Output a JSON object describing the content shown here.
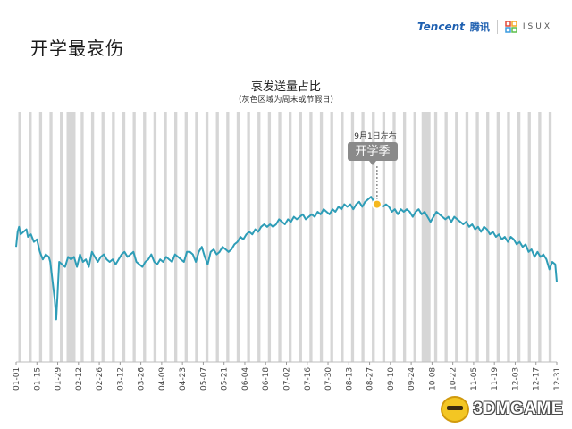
{
  "slide": {
    "title": "开学最哀伤",
    "brand": {
      "tencent": "Tencent",
      "tencent_cn": "腾讯",
      "isux": "ISUX"
    },
    "watermark": "3DMGAME"
  },
  "colors": {
    "line": "#2e9db7",
    "weekend_band": "#d6d6d6",
    "marker": "#f5b820",
    "callout_tag": "#8a8a8a"
  },
  "chart_data": {
    "type": "line",
    "title": "哀发送量占比",
    "subtitle": "（灰色区域为周末或节假日）",
    "xlabel": "",
    "ylabel": "",
    "x_start": "01-01",
    "x_end": "12-31",
    "x_tick_labels": [
      "01-01",
      "01-15",
      "01-29",
      "02-12",
      "02-26",
      "03-12",
      "03-26",
      "04-09",
      "04-23",
      "05-07",
      "05-21",
      "06-04",
      "06-18",
      "07-02",
      "07-16",
      "07-30",
      "08-13",
      "08-27",
      "09-10",
      "09-24",
      "10-08",
      "10-22",
      "11-05",
      "11-19",
      "12-03",
      "12-17",
      "12-31"
    ],
    "x_tick_days": [
      0,
      14,
      28,
      42,
      56,
      70,
      84,
      98,
      112,
      126,
      140,
      154,
      168,
      182,
      196,
      210,
      224,
      238,
      252,
      266,
      280,
      294,
      308,
      322,
      336,
      350,
      364
    ],
    "ylim": [
      0,
      100
    ],
    "grid": false,
    "shaded_regions_label": "weekends or holidays",
    "series": [
      {
        "name": "",
        "points": [
          [
            0,
            46
          ],
          [
            1,
            52
          ],
          [
            2,
            54
          ],
          [
            3,
            51
          ],
          [
            5,
            52
          ],
          [
            7,
            53
          ],
          [
            8,
            50
          ],
          [
            10,
            51
          ],
          [
            12,
            48
          ],
          [
            14,
            49
          ],
          [
            16,
            44
          ],
          [
            18,
            41
          ],
          [
            20,
            43
          ],
          [
            22,
            42
          ],
          [
            23,
            40
          ],
          [
            26,
            25
          ],
          [
            27,
            17
          ],
          [
            28,
            28
          ],
          [
            29,
            40
          ],
          [
            31,
            39
          ],
          [
            33,
            38
          ],
          [
            35,
            42
          ],
          [
            37,
            41
          ],
          [
            39,
            42
          ],
          [
            41,
            38
          ],
          [
            43,
            43
          ],
          [
            45,
            40
          ],
          [
            47,
            41
          ],
          [
            49,
            38
          ],
          [
            51,
            44
          ],
          [
            53,
            42
          ],
          [
            55,
            40
          ],
          [
            57,
            42
          ],
          [
            59,
            43
          ],
          [
            61,
            41
          ],
          [
            63,
            40
          ],
          [
            65,
            41
          ],
          [
            67,
            39
          ],
          [
            69,
            41
          ],
          [
            71,
            43
          ],
          [
            73,
            44
          ],
          [
            75,
            42
          ],
          [
            77,
            43
          ],
          [
            79,
            44
          ],
          [
            81,
            40
          ],
          [
            83,
            39
          ],
          [
            85,
            38
          ],
          [
            87,
            40
          ],
          [
            89,
            41
          ],
          [
            91,
            43
          ],
          [
            93,
            40
          ],
          [
            95,
            39
          ],
          [
            97,
            41
          ],
          [
            99,
            40
          ],
          [
            101,
            42
          ],
          [
            103,
            41
          ],
          [
            105,
            40
          ],
          [
            107,
            43
          ],
          [
            109,
            42
          ],
          [
            111,
            41
          ],
          [
            113,
            40
          ],
          [
            115,
            44
          ],
          [
            117,
            44
          ],
          [
            119,
            43
          ],
          [
            121,
            40
          ],
          [
            123,
            44
          ],
          [
            125,
            46
          ],
          [
            127,
            42
          ],
          [
            129,
            39
          ],
          [
            131,
            44
          ],
          [
            133,
            45
          ],
          [
            135,
            43
          ],
          [
            137,
            44
          ],
          [
            139,
            46
          ],
          [
            141,
            45
          ],
          [
            143,
            44
          ],
          [
            145,
            45
          ],
          [
            147,
            47
          ],
          [
            149,
            48
          ],
          [
            151,
            50
          ],
          [
            153,
            49
          ],
          [
            155,
            51
          ],
          [
            157,
            52
          ],
          [
            159,
            51
          ],
          [
            161,
            53
          ],
          [
            163,
            52
          ],
          [
            165,
            54
          ],
          [
            167,
            55
          ],
          [
            169,
            54
          ],
          [
            171,
            55
          ],
          [
            173,
            54
          ],
          [
            175,
            55
          ],
          [
            177,
            57
          ],
          [
            179,
            56
          ],
          [
            181,
            55
          ],
          [
            183,
            57
          ],
          [
            185,
            56
          ],
          [
            187,
            58
          ],
          [
            189,
            57
          ],
          [
            191,
            58
          ],
          [
            193,
            59
          ],
          [
            195,
            57
          ],
          [
            197,
            58
          ],
          [
            199,
            59
          ],
          [
            201,
            58
          ],
          [
            203,
            60
          ],
          [
            205,
            59
          ],
          [
            207,
            61
          ],
          [
            209,
            60
          ],
          [
            211,
            59
          ],
          [
            213,
            61
          ],
          [
            215,
            60
          ],
          [
            217,
            62
          ],
          [
            219,
            61
          ],
          [
            221,
            63
          ],
          [
            223,
            62
          ],
          [
            225,
            63
          ],
          [
            227,
            61
          ],
          [
            229,
            63
          ],
          [
            231,
            64
          ],
          [
            233,
            62
          ],
          [
            235,
            64
          ],
          [
            237,
            65
          ],
          [
            239,
            66
          ],
          [
            241,
            64
          ],
          [
            243,
            63
          ],
          [
            245,
            64
          ],
          [
            247,
            62
          ],
          [
            249,
            63
          ],
          [
            251,
            62
          ],
          [
            253,
            60
          ],
          [
            255,
            61
          ],
          [
            257,
            59
          ],
          [
            259,
            61
          ],
          [
            261,
            60
          ],
          [
            263,
            61
          ],
          [
            265,
            60
          ],
          [
            267,
            58
          ],
          [
            269,
            60
          ],
          [
            271,
            61
          ],
          [
            273,
            59
          ],
          [
            275,
            60
          ],
          [
            277,
            58
          ],
          [
            279,
            56
          ],
          [
            281,
            58
          ],
          [
            283,
            60
          ],
          [
            285,
            59
          ],
          [
            287,
            58
          ],
          [
            289,
            57
          ],
          [
            291,
            58
          ],
          [
            293,
            56
          ],
          [
            295,
            58
          ],
          [
            297,
            57
          ],
          [
            299,
            56
          ],
          [
            301,
            55
          ],
          [
            303,
            56
          ],
          [
            305,
            54
          ],
          [
            307,
            55
          ],
          [
            309,
            53
          ],
          [
            311,
            54
          ],
          [
            313,
            52
          ],
          [
            315,
            54
          ],
          [
            317,
            53
          ],
          [
            319,
            51
          ],
          [
            321,
            52
          ],
          [
            323,
            50
          ],
          [
            325,
            51
          ],
          [
            327,
            49
          ],
          [
            329,
            50
          ],
          [
            331,
            48
          ],
          [
            333,
            50
          ],
          [
            335,
            49
          ],
          [
            337,
            47
          ],
          [
            339,
            48
          ],
          [
            341,
            46
          ],
          [
            343,
            47
          ],
          [
            345,
            44
          ],
          [
            347,
            45
          ],
          [
            349,
            42
          ],
          [
            351,
            44
          ],
          [
            353,
            42
          ],
          [
            355,
            43
          ],
          [
            357,
            41
          ],
          [
            359,
            37
          ],
          [
            361,
            40
          ],
          [
            363,
            39
          ],
          [
            364,
            32
          ]
        ]
      }
    ],
    "annotation": {
      "day": 243,
      "date_label": "9月1日左右",
      "tag": "开学季"
    }
  }
}
